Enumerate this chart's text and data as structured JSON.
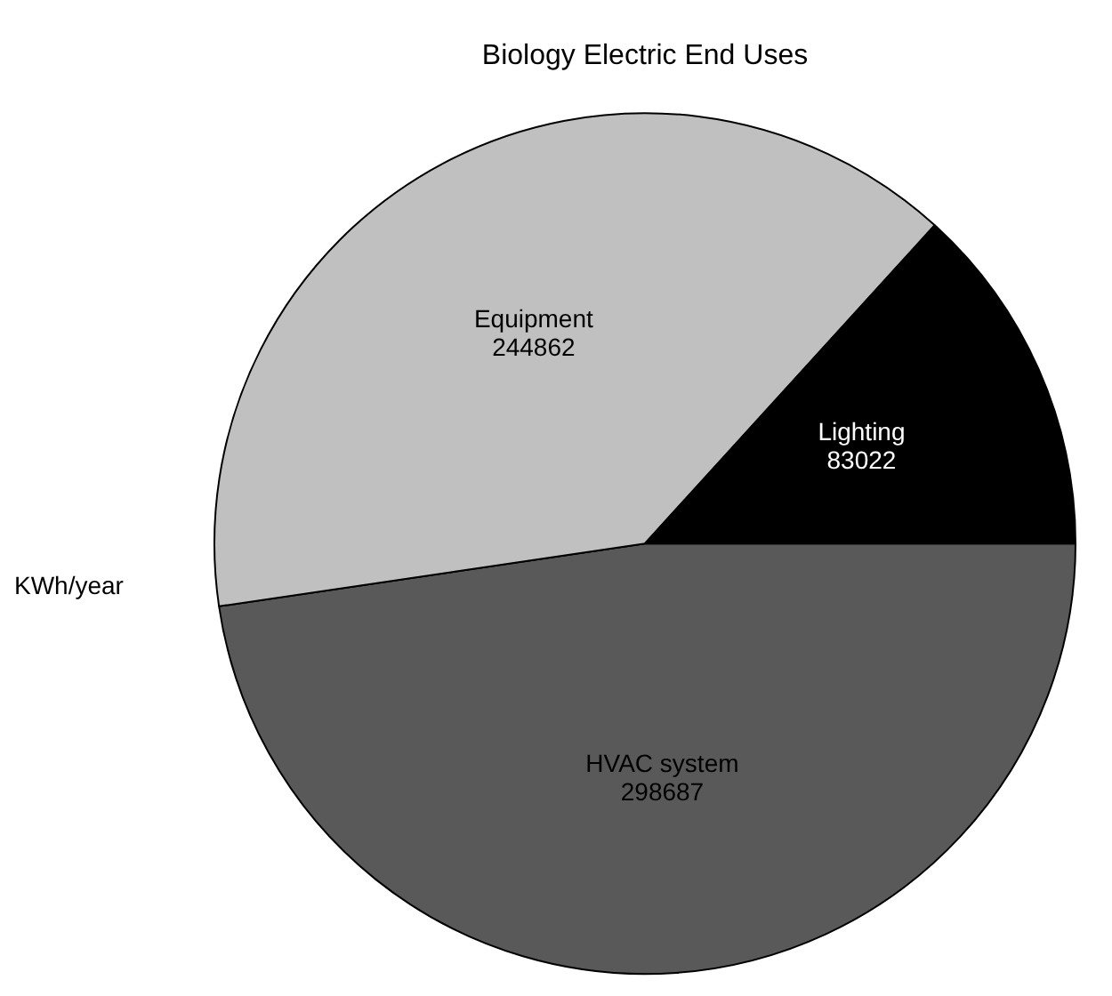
{
  "chart_data": {
    "type": "pie",
    "title": "Biology Electric End Uses",
    "ylabel": "KWh/year",
    "categories": [
      "HVAC system",
      "Equipment",
      "Lighting"
    ],
    "values": [
      298687,
      244862,
      83022
    ],
    "colors": [
      "#595959",
      "#c0c0c0",
      "#000000"
    ],
    "data_labels": true,
    "legend": false
  }
}
